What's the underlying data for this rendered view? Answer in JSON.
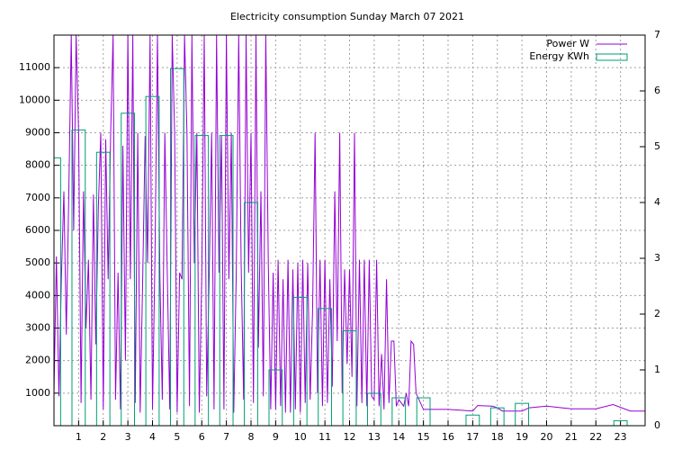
{
  "chart_data": {
    "type": "line",
    "title": "Electricity consumption Sunday March 07 2021",
    "xlim": [
      0,
      24
    ],
    "xticks": [
      1,
      2,
      3,
      4,
      5,
      6,
      7,
      8,
      9,
      10,
      11,
      12,
      13,
      14,
      15,
      16,
      17,
      18,
      19,
      20,
      21,
      22,
      23
    ],
    "ylim": [
      0,
      12000
    ],
    "yticks": [
      1000,
      2000,
      3000,
      4000,
      5000,
      6000,
      7000,
      8000,
      9000,
      10000,
      11000
    ],
    "y2lim": [
      0,
      7
    ],
    "y2ticks": [
      0,
      1,
      2,
      3,
      4,
      5,
      6,
      7
    ],
    "grid": true,
    "legend": "top-right",
    "series": [
      {
        "name": "Power W",
        "color": "#9400d3",
        "type": "line",
        "axis": "y",
        "x": [
          0.0,
          0.1,
          0.2,
          0.3,
          0.4,
          0.5,
          0.6,
          0.7,
          0.8,
          0.9,
          1.0,
          1.1,
          1.2,
          1.3,
          1.4,
          1.5,
          1.6,
          1.7,
          1.8,
          1.9,
          2.0,
          2.1,
          2.2,
          2.3,
          2.4,
          2.5,
          2.6,
          2.7,
          2.8,
          2.9,
          3.0,
          3.1,
          3.2,
          3.3,
          3.4,
          3.5,
          3.6,
          3.7,
          3.8,
          3.9,
          4.0,
          4.1,
          4.2,
          4.3,
          4.4,
          4.5,
          4.6,
          4.7,
          4.8,
          4.9,
          5.0,
          5.1,
          5.2,
          5.3,
          5.4,
          5.5,
          5.6,
          5.7,
          5.8,
          5.9,
          6.0,
          6.1,
          6.2,
          6.3,
          6.4,
          6.5,
          6.6,
          6.7,
          6.8,
          6.9,
          7.0,
          7.1,
          7.2,
          7.3,
          7.4,
          7.5,
          7.6,
          7.7,
          7.8,
          7.9,
          8.0,
          8.1,
          8.2,
          8.3,
          8.4,
          8.5,
          8.6,
          8.7,
          8.8,
          8.9,
          9.0,
          9.1,
          9.2,
          9.3,
          9.4,
          9.5,
          9.6,
          9.7,
          9.8,
          9.9,
          10.0,
          10.1,
          10.2,
          10.3,
          10.4,
          10.5,
          10.6,
          10.7,
          10.8,
          10.9,
          11.0,
          11.1,
          11.2,
          11.3,
          11.4,
          11.5,
          11.6,
          11.7,
          11.8,
          11.9,
          12.0,
          12.1,
          12.2,
          12.3,
          12.4,
          12.5,
          12.6,
          12.7,
          12.8,
          12.9,
          13.0,
          13.1,
          13.2,
          13.3,
          13.4,
          13.5,
          13.6,
          13.7,
          13.8,
          13.9,
          14.0,
          14.1,
          14.2,
          14.3,
          14.4,
          14.5,
          14.6,
          14.7,
          15.0,
          16.0,
          17.0,
          17.2,
          17.8,
          18.0,
          18.2,
          19.0,
          19.3,
          20.0,
          21.0,
          22.0,
          22.7,
          23.4,
          24.0
        ],
        "values": [
          1000,
          5200,
          900,
          4500,
          7200,
          2800,
          7000,
          12000,
          6000,
          12000,
          9000,
          700,
          7200,
          3000,
          5100,
          800,
          7100,
          2500,
          6700,
          9000,
          500,
          8800,
          4500,
          9000,
          12000,
          800,
          4700,
          500,
          8600,
          2000,
          12000,
          4500,
          12000,
          700,
          9000,
          400,
          4500,
          8900,
          5000,
          12000,
          500,
          5100,
          12000,
          4600,
          800,
          9000,
          4700,
          500,
          12000,
          9000,
          400,
          4700,
          4500,
          12000,
          9000,
          600,
          12000,
          5000,
          9000,
          400,
          4700,
          12000,
          900,
          4600,
          9000,
          500,
          12000,
          4700,
          8900,
          500,
          12000,
          4500,
          9000,
          400,
          4700,
          12000,
          5000,
          800,
          12000,
          4700,
          9000,
          700,
          12000,
          2400,
          7200,
          900,
          12000,
          5000,
          500,
          4700,
          500,
          5100,
          600,
          4500,
          400,
          5100,
          400,
          4800,
          500,
          5000,
          400,
          5100,
          700,
          5000,
          800,
          3500,
          9000,
          1000,
          5100,
          600,
          5100,
          700,
          4500,
          1200,
          7200,
          2600,
          9000,
          1000,
          4800,
          1900,
          4800,
          1500,
          9000,
          600,
          5100,
          700,
          5100,
          600,
          5100,
          900,
          800,
          5100,
          600,
          2200,
          500,
          4500,
          700,
          2600,
          2600,
          600,
          800,
          700,
          600,
          1000,
          600,
          2600,
          2500,
          1000,
          500,
          500,
          450,
          620,
          600,
          550,
          450,
          450,
          550,
          600,
          520,
          520,
          650,
          450,
          450
        ]
      },
      {
        "name": "Energy KWh",
        "color": "#009e73",
        "type": "boxes",
        "axis": "y2",
        "x": [
          0,
          1,
          2,
          3,
          4,
          5,
          6,
          7,
          8,
          9,
          10,
          11,
          12,
          13,
          14,
          15,
          16,
          17,
          18,
          19,
          20,
          21,
          22,
          23
        ],
        "values": [
          4.8,
          5.3,
          4.9,
          5.6,
          5.9,
          6.4,
          5.2,
          5.2,
          4.0,
          1.0,
          2.3,
          2.1,
          1.7,
          0.58,
          0.5,
          0.5,
          0,
          0.19,
          0.32,
          0.4,
          0,
          0,
          0,
          0.09
        ]
      }
    ]
  }
}
